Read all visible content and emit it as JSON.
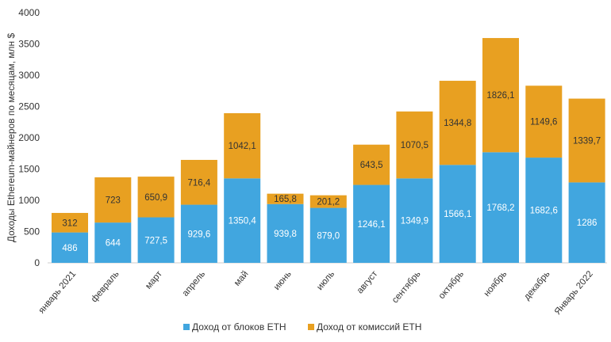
{
  "chart_data": {
    "type": "bar",
    "stacked": true,
    "ylabel": "Доходы Ethereum-майнеров по месяцам, млн $",
    "ylim": [
      0,
      4000
    ],
    "yticks": [
      0,
      500,
      1000,
      1500,
      2000,
      2500,
      3000,
      3500,
      4000
    ],
    "grid": false,
    "legend": "bottom",
    "categories": [
      "январь 2021",
      "февраль",
      "март",
      "апрель",
      "май",
      "июнь",
      "июль",
      "август",
      "сентябрь",
      "октябрь",
      "ноябрь",
      "декабрь",
      "Январь 2022"
    ],
    "series": [
      {
        "name": "Доход от блоков ETH",
        "color": "#41a6df",
        "values": [
          486,
          644,
          727.5,
          929.6,
          1350.4,
          939.8,
          879.0,
          1246.1,
          1349.9,
          1566.1,
          1768.2,
          1682.6,
          1286
        ],
        "labels": [
          "486",
          "644",
          "727,5",
          "929,6",
          "1350,4",
          "939,8",
          "879,0",
          "1246,1",
          "1349,9",
          "1566,1",
          "1768,2",
          "1682,6",
          "1286"
        ]
      },
      {
        "name": "Доход от комиссий ETH",
        "color": "#e8a021",
        "values": [
          312,
          723,
          650.9,
          716.4,
          1042.1,
          165.8,
          201.2,
          643.5,
          1070.5,
          1344.8,
          1826.1,
          1149.6,
          1339.7
        ],
        "labels": [
          "312",
          "723",
          "650,9",
          "716,4",
          "1042,1",
          "165,8",
          "201,2",
          "643,5",
          "1070,5",
          "1344,8",
          "1826,1",
          "1149,6",
          "1339,7"
        ]
      }
    ]
  }
}
